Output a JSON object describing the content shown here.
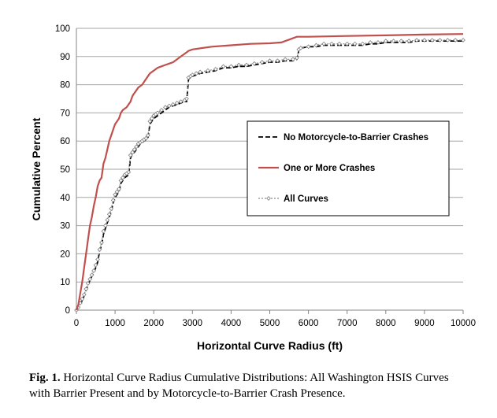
{
  "chart_data": {
    "type": "line",
    "xlabel": "Horizontal Curve Radius (ft)",
    "ylabel": "Cumulative Percent",
    "xlim": [
      0,
      10000
    ],
    "ylim": [
      0,
      100
    ],
    "xticks": [
      0,
      1000,
      2000,
      3000,
      4000,
      5000,
      6000,
      7000,
      8000,
      9000,
      10000
    ],
    "yticks": [
      0,
      10,
      20,
      30,
      40,
      50,
      60,
      70,
      80,
      90,
      100
    ],
    "grid": "horizontal",
    "legend_position": "right-center",
    "series": [
      {
        "name": "No Motorcycle-to-Barrier Crashes",
        "style": "dashed",
        "color": "#000000",
        "x": [
          0,
          50,
          100,
          150,
          200,
          250,
          300,
          350,
          400,
          450,
          500,
          550,
          600,
          650,
          700,
          750,
          800,
          850,
          900,
          950,
          1000,
          1050,
          1100,
          1150,
          1200,
          1250,
          1300,
          1350,
          1400,
          1450,
          1500,
          1550,
          1600,
          1650,
          1700,
          1750,
          1800,
          1850,
          1900,
          1950,
          2000,
          2050,
          2100,
          2200,
          2300,
          2400,
          2500,
          2600,
          2700,
          2800,
          2850,
          2900,
          2950,
          3000,
          3100,
          3200,
          3400,
          3600,
          3800,
          4000,
          4200,
          4400,
          4600,
          4800,
          5000,
          5200,
          5400,
          5600,
          5700,
          5750,
          5800,
          6000,
          6200,
          6400,
          6600,
          6800,
          7000,
          7200,
          7400,
          7600,
          7800,
          8000,
          8200,
          8400,
          8600,
          8800,
          9000,
          9200,
          9400,
          9600,
          9800,
          10000
        ],
        "y": [
          0,
          1,
          2,
          3.5,
          5,
          7,
          9,
          10.5,
          12,
          13.5,
          15,
          17,
          21,
          23,
          27,
          29,
          31,
          33,
          35,
          38,
          40,
          41,
          42,
          45,
          46,
          47,
          47.5,
          48,
          54,
          55.5,
          56,
          57,
          58,
          59,
          59.5,
          60,
          60.5,
          61,
          66,
          67,
          68,
          68.5,
          69,
          70,
          71,
          72,
          72.5,
          73,
          73.5,
          74,
          74,
          82,
          82.5,
          83,
          83.5,
          84,
          84.5,
          85,
          86,
          86,
          86.5,
          86.5,
          87,
          87.5,
          88,
          88,
          88.5,
          88.5,
          89,
          92,
          93,
          93.5,
          93.5,
          94,
          94,
          94,
          94,
          94,
          94,
          94.5,
          94.5,
          95,
          95,
          95,
          95,
          95.5,
          95.5,
          95.5,
          95.5,
          95.5,
          95.5,
          95.5
        ]
      },
      {
        "name": "One or More Crashes",
        "style": "solid",
        "color": "#c0504d",
        "x": [
          0,
          50,
          100,
          150,
          200,
          250,
          300,
          350,
          400,
          450,
          500,
          550,
          600,
          650,
          700,
          750,
          800,
          850,
          900,
          950,
          1000,
          1050,
          1100,
          1150,
          1200,
          1300,
          1400,
          1450,
          1500,
          1550,
          1600,
          1700,
          1800,
          1850,
          1900,
          2000,
          2100,
          2200,
          2300,
          2400,
          2500,
          2600,
          2700,
          2800,
          2900,
          3000,
          3500,
          4000,
          4500,
          5000,
          5300,
          5500,
          5700,
          6000,
          7000,
          8000,
          9000,
          10000
        ],
        "y": [
          0,
          2,
          6,
          10,
          15,
          20,
          25,
          30,
          33,
          37,
          40,
          44,
          46,
          47,
          52,
          54,
          57,
          60,
          62,
          64,
          66,
          67,
          68,
          70,
          71,
          72,
          74,
          76,
          77,
          78,
          79,
          80,
          82,
          83,
          84,
          85,
          86,
          86.5,
          87,
          87.5,
          88,
          89,
          90,
          91,
          92,
          92.5,
          93.5,
          94,
          94.5,
          94.7,
          95,
          96,
          97,
          97,
          97.3,
          97.5,
          97.8,
          98
        ]
      },
      {
        "name": "All Curves",
        "style": "dotted-diamond",
        "color": "#8c8c8c",
        "x": [
          0,
          50,
          100,
          150,
          200,
          250,
          300,
          350,
          400,
          450,
          500,
          550,
          600,
          650,
          700,
          750,
          800,
          850,
          900,
          950,
          1000,
          1050,
          1100,
          1150,
          1200,
          1250,
          1300,
          1350,
          1400,
          1450,
          1500,
          1550,
          1600,
          1650,
          1700,
          1750,
          1800,
          1850,
          1900,
          1950,
          2000,
          2050,
          2100,
          2200,
          2300,
          2400,
          2500,
          2600,
          2700,
          2800,
          2850,
          2900,
          2950,
          3000,
          3100,
          3200,
          3400,
          3600,
          3800,
          4000,
          4200,
          4400,
          4600,
          4800,
          5000,
          5200,
          5400,
          5600,
          5700,
          5750,
          5800,
          6000,
          6200,
          6400,
          6600,
          6800,
          7000,
          7200,
          7400,
          7600,
          7800,
          8000,
          8200,
          8400,
          8600,
          8800,
          9000,
          9200,
          9400,
          9600,
          9800,
          10000
        ],
        "y": [
          0,
          1,
          2.5,
          4,
          5.5,
          7.5,
          9.5,
          11,
          12.5,
          14,
          16,
          18,
          21.5,
          24,
          28,
          30,
          32,
          34,
          36,
          39,
          41,
          42,
          43,
          46,
          47,
          48,
          48.5,
          49,
          55,
          56,
          57,
          58,
          59,
          59.5,
          60,
          60.5,
          61,
          62,
          67,
          68,
          69,
          69.5,
          70,
          71,
          72,
          72.5,
          73,
          73.5,
          74,
          74.5,
          75,
          82.5,
          83,
          83.5,
          84,
          84.5,
          85,
          85.5,
          86.5,
          86.5,
          87,
          87,
          87.5,
          88,
          88.5,
          88.5,
          89,
          89,
          89.5,
          92.5,
          93,
          93.5,
          94,
          94.5,
          94.5,
          94.5,
          94.5,
          94.5,
          94.5,
          95,
          95,
          95.5,
          95.5,
          95.5,
          95.5,
          95.8,
          95.8,
          95.8,
          95.8,
          95.8,
          95.8,
          95.8
        ]
      }
    ]
  },
  "caption": {
    "label": "Fig. 1.",
    "text": " Horizontal Curve Radius Cumulative Distributions: All Washington HSIS Curves with Barrier Present and by Motorcycle-to-Barrier Crash Presence."
  }
}
